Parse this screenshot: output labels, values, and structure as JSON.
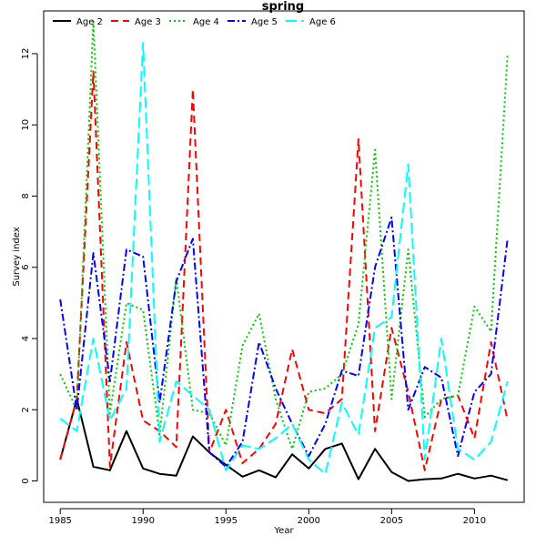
{
  "chart_data": {
    "type": "line",
    "title": "spring",
    "xlabel": "Year",
    "ylabel": "Survey index",
    "xlim": [
      1984,
      2013
    ],
    "ylim": [
      -0.6,
      13.2
    ],
    "x_ticks": [
      1985,
      1990,
      1995,
      2000,
      2005,
      2010
    ],
    "y_ticks": [
      0,
      2,
      4,
      6,
      8,
      10,
      12
    ],
    "grid": false,
    "legend_position": "top-left",
    "x": [
      1985,
      1986,
      1987,
      1988,
      1989,
      1990,
      1991,
      1992,
      1993,
      1994,
      1995,
      1996,
      1997,
      1998,
      1999,
      2000,
      2001,
      2002,
      2003,
      2004,
      2005,
      2006,
      2007,
      2008,
      2009,
      2010,
      2011,
      2012
    ],
    "series": [
      {
        "name": "Age 2",
        "color": "#000000",
        "dash": "solid",
        "values": [
          0.6,
          2.3,
          0.4,
          0.3,
          1.4,
          0.35,
          0.2,
          0.15,
          1.25,
          0.8,
          0.45,
          0.12,
          0.3,
          0.1,
          0.75,
          0.35,
          0.9,
          1.05,
          0.05,
          0.9,
          0.25,
          0.0,
          0.05,
          0.07,
          0.2,
          0.07,
          0.15,
          0.02
        ]
      },
      {
        "name": "Age 3",
        "color": "#ff0000",
        "dash": "dashed",
        "values": [
          0.6,
          2.3,
          11.5,
          0.4,
          3.9,
          1.7,
          1.4,
          0.95,
          11.0,
          0.8,
          2.0,
          0.5,
          0.9,
          1.6,
          3.7,
          2.0,
          1.9,
          2.3,
          9.6,
          1.4,
          4.3,
          2.5,
          0.3,
          2.3,
          2.4,
          1.2,
          3.9,
          1.7
        ]
      },
      {
        "name": "Age 4",
        "color": "#00cc00",
        "dash": "dotted",
        "values": [
          3.0,
          2.0,
          12.9,
          1.9,
          5.0,
          4.8,
          1.3,
          5.7,
          2.0,
          1.9,
          1.0,
          3.8,
          4.7,
          2.3,
          0.9,
          2.5,
          2.6,
          3.0,
          4.4,
          9.3,
          2.3,
          6.5,
          1.8,
          2.3,
          2.4,
          4.9,
          4.2,
          12.0
        ]
      },
      {
        "name": "Age 5",
        "color": "#0000ff",
        "dash": "dashdot",
        "values": [
          5.1,
          2.0,
          6.4,
          2.8,
          6.5,
          6.3,
          2.2,
          5.6,
          6.8,
          0.8,
          0.4,
          1.1,
          3.9,
          2.6,
          1.6,
          0.7,
          1.6,
          3.1,
          2.95,
          6.0,
          7.4,
          2.0,
          3.2,
          2.9,
          0.7,
          2.5,
          3.0,
          6.8
        ]
      },
      {
        "name": "Age 6",
        "color": "#00ffff",
        "dash": "longdash",
        "values": [
          1.75,
          1.4,
          4.0,
          1.7,
          2.6,
          12.3,
          1.1,
          2.8,
          2.4,
          2.0,
          0.3,
          1.0,
          0.9,
          1.2,
          1.6,
          0.6,
          0.2,
          2.2,
          1.3,
          4.3,
          4.6,
          8.9,
          0.6,
          4.0,
          0.9,
          0.6,
          1.1,
          2.8
        ]
      }
    ]
  }
}
